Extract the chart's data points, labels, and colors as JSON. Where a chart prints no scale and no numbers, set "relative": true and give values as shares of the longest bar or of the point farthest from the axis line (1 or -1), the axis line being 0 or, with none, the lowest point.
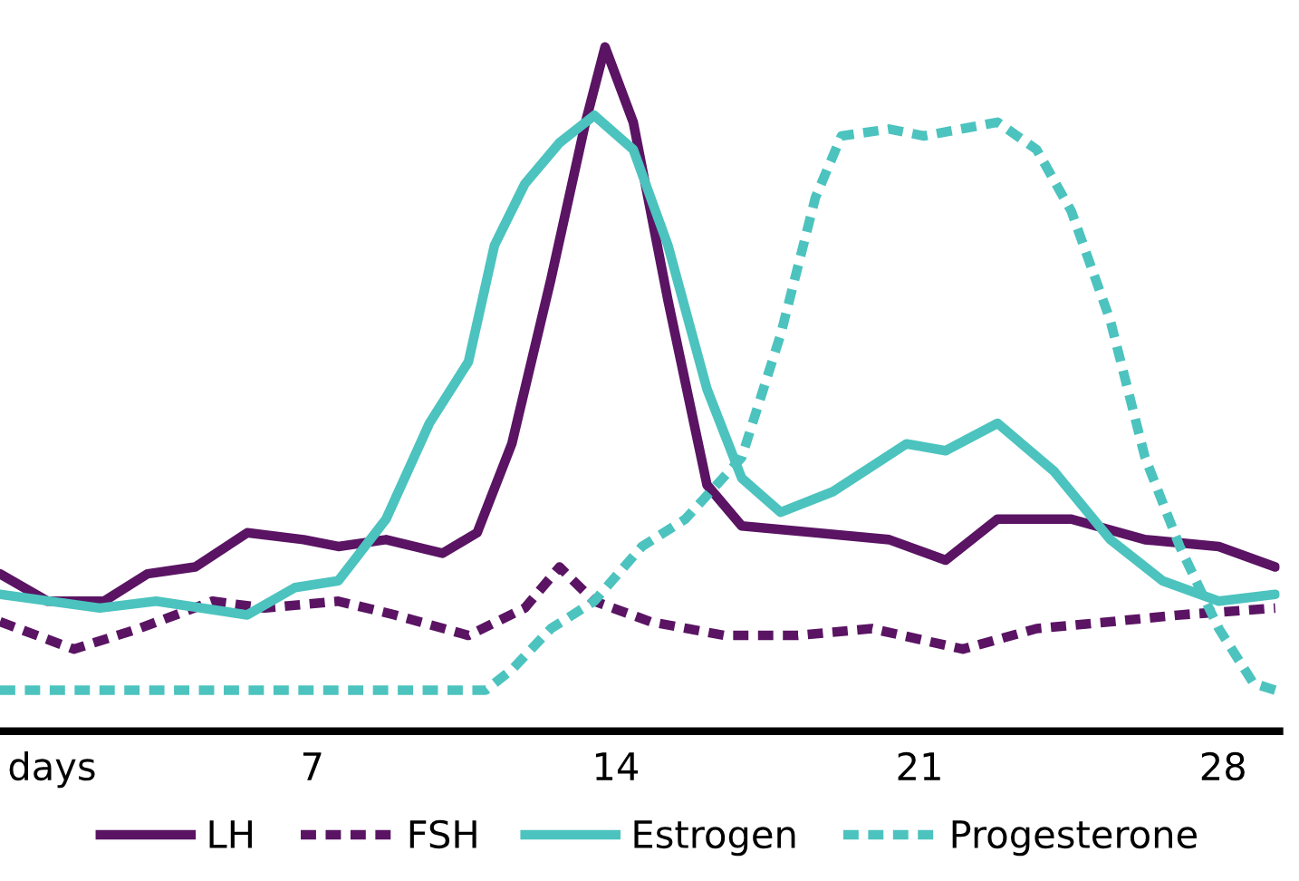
{
  "chart_data": {
    "type": "line",
    "relative": true,
    "tick_labels": "x",
    "grid": false,
    "legend": "bottom",
    "marker": "none",
    "xlim": [
      -0.2,
      29.3
    ],
    "xticks": [
      {
        "value": 1,
        "label": "days"
      },
      7,
      14,
      21,
      28
    ],
    "series": [
      {
        "name": "LH",
        "color": "#5a1463",
        "line_style": "solid",
        "x": [
          -0.2,
          0.9,
          2.2,
          3.2,
          4.3,
          5.5,
          6.8,
          7.6,
          8.7,
          10.0,
          10.8,
          11.6,
          12.5,
          13.3,
          13.75,
          14.4,
          15.2,
          16.1,
          16.9,
          18.6,
          20.3,
          21.6,
          22.8,
          24.5,
          26.2,
          27.9,
          29.2
        ],
        "values": [
          0.23,
          0.19,
          0.19,
          0.23,
          0.24,
          0.29,
          0.28,
          0.27,
          0.28,
          0.26,
          0.29,
          0.42,
          0.66,
          0.89,
          1,
          0.89,
          0.63,
          0.36,
          0.3,
          0.29,
          0.28,
          0.25,
          0.31,
          0.31,
          0.28,
          0.27,
          0.24
        ]
      },
      {
        "name": "FSH",
        "color": "#5a1463",
        "line_style": "dashed",
        "x": [
          -0.2,
          1.5,
          3.0,
          4.7,
          5.9,
          7.6,
          8.9,
          10.6,
          11.9,
          12.7,
          13.5,
          14.8,
          16.5,
          18.2,
          19.9,
          22.0,
          23.7,
          25.4,
          27.0,
          29.2
        ],
        "values": [
          0.16,
          0.12,
          0.15,
          0.19,
          0.18,
          0.19,
          0.17,
          0.14,
          0.18,
          0.24,
          0.19,
          0.16,
          0.14,
          0.14,
          0.15,
          0.12,
          0.15,
          0.16,
          0.17,
          0.18
        ]
      },
      {
        "name": "Estrogen",
        "color": "#4cc3be",
        "line_style": "solid",
        "x": [
          -0.2,
          2.1,
          3.4,
          5.5,
          6.6,
          7.6,
          8.7,
          9.7,
          10.6,
          11.2,
          11.9,
          12.7,
          13.5,
          14.4,
          15.2,
          16.1,
          16.9,
          17.8,
          19.0,
          20.7,
          21.6,
          22.8,
          24.1,
          25.4,
          26.6,
          27.9,
          29.2
        ],
        "values": [
          0.2,
          0.18,
          0.19,
          0.17,
          0.21,
          0.22,
          0.31,
          0.45,
          0.54,
          0.71,
          0.8,
          0.86,
          0.9,
          0.85,
          0.71,
          0.5,
          0.37,
          0.32,
          0.35,
          0.42,
          0.41,
          0.45,
          0.38,
          0.28,
          0.22,
          0.19,
          0.2
        ]
      },
      {
        "name": "Progesterone",
        "color": "#4cc3be",
        "line_style": "dashed",
        "x": [
          -0.2,
          11.0,
          11.6,
          12.5,
          13.5,
          14.6,
          15.6,
          16.9,
          17.8,
          18.6,
          19.2,
          20.3,
          21.1,
          22.8,
          23.7,
          24.5,
          25.4,
          26.2,
          27.0,
          27.9,
          28.7,
          29.2
        ],
        "values": [
          0.06,
          0.06,
          0.09,
          0.15,
          0.19,
          0.27,
          0.31,
          0.4,
          0.58,
          0.78,
          0.87,
          0.88,
          0.87,
          0.89,
          0.85,
          0.76,
          0.6,
          0.4,
          0.27,
          0.15,
          0.07,
          0.06
        ]
      }
    ]
  }
}
